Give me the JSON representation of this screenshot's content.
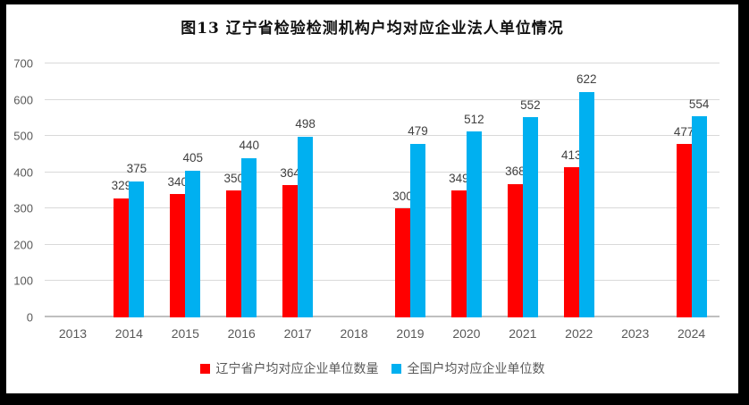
{
  "chart_data": {
    "type": "bar",
    "title": "图13 辽宁省检验检测机构户均对应企业法人单位情况",
    "categories": [
      "2013",
      "2014",
      "2015",
      "2016",
      "2017",
      "2018",
      "2019",
      "2020",
      "2021",
      "2022",
      "2023",
      "2024"
    ],
    "series": [
      {
        "name": "辽宁省户均对应企业单位数量",
        "color": "#FF0000",
        "values": [
          null,
          329,
          340,
          350,
          364,
          null,
          300,
          349,
          368,
          413,
          null,
          477
        ]
      },
      {
        "name": "全国户均对应企业单位数",
        "color": "#00B0F0",
        "values": [
          null,
          375,
          405,
          440,
          498,
          null,
          479,
          512,
          552,
          622,
          null,
          554
        ]
      }
    ],
    "ylim": [
      0,
      700
    ],
    "ytick_step": 100,
    "grid": true,
    "legend_position": "bottom",
    "data_labels": true
  },
  "colors": {
    "gridline": "#d9d9d9",
    "axis_line": "#bfbfbf",
    "axis_text": "#595959",
    "data_label_text": "#404040",
    "frame_border": "#000000",
    "background": "#ffffff"
  }
}
